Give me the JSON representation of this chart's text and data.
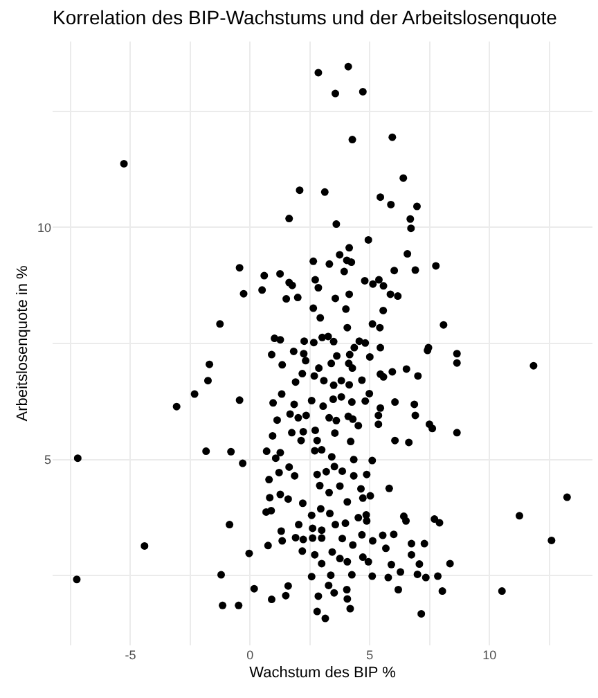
{
  "chart_data": {
    "type": "scatter",
    "title": "Korrelation des BIP-Wachstums und der Arbeitslosenquote",
    "xlabel": "Wachstum des BIP %",
    "ylabel": "Arbeitslosenquote in %",
    "xlim": [
      -8.25,
      14.3
    ],
    "ylim": [
      1.0,
      14.0
    ],
    "xticks": [
      {
        "value": -7.5,
        "label": null
      },
      -5,
      {
        "value": -2.5,
        "label": null
      },
      0,
      {
        "value": 2.5,
        "label": null
      },
      5,
      {
        "value": 7.5,
        "label": null
      },
      10,
      {
        "value": 12.5,
        "label": null
      }
    ],
    "yticks": [
      {
        "value": 2.5,
        "label": null
      },
      5,
      {
        "value": 7.5,
        "label": null
      },
      10,
      {
        "value": 12.5,
        "label": null
      }
    ],
    "grid": true,
    "marker": "circle",
    "color": "#000000",
    "x": [
      2.85,
      4.1,
      3.56,
      4.71,
      4.27,
      5.94,
      -5.27,
      6.4,
      2.07,
      3.12,
      5.44,
      5.88,
      6.97,
      1.63,
      3.6,
      6.69,
      6.72,
      4.94,
      4.14,
      3.74,
      6.57,
      -0.44,
      2.64,
      3.31,
      4.04,
      4.23,
      3.93,
      6.02,
      6.9,
      7.76,
      0.59,
      1.25,
      1.63,
      1.76,
      2.72,
      2.85,
      4.79,
      5.13,
      5.38,
      5.57,
      5.86,
      6.17,
      -0.27,
      0.5,
      1.51,
      1.99,
      3.56,
      4.14,
      2.64,
      2.93,
      4.0,
      5.56,
      -1.26,
      5.11,
      5.42,
      4.06,
      8.08,
      1.02,
      1.26,
      2.26,
      2.66,
      3.01,
      3.26,
      3.49,
      4.56,
      4.81,
      5.44,
      7.45,
      7.41,
      8.64,
      8.64,
      11.84,
      0.9,
      1.82,
      2.24,
      3.62,
      4.16,
      4.35,
      5.0,
      -1.7,
      -1.76,
      -2.32,
      -3.07,
      1.34,
      2.32,
      2.87,
      3.39,
      4.12,
      4.27,
      2.18,
      2.68,
      3.08,
      3.81,
      4.14,
      3.49,
      1.9,
      4.67,
      5.44,
      5.57,
      5.94,
      6.53,
      7.01,
      1.32,
      -0.44,
      0.96,
      1.84,
      2.57,
      3.05,
      3.47,
      3.81,
      4.25,
      4.81,
      4.98,
      6.05,
      6.86,
      5.44,
      1.67,
      2.01,
      2.34,
      3.3,
      3.6,
      4.1,
      4.29,
      5.36,
      6.9,
      1.13,
      4.52,
      5.36,
      7.49,
      7.61,
      1.74,
      2.22,
      2.72,
      3.54,
      8.64,
      0.94,
      2.13,
      2.8,
      4.2,
      6.05,
      6.63,
      -7.2,
      -1.84,
      -0.8,
      -0.31,
      0.69,
      1.07,
      1.26,
      2.7,
      2.99,
      3.41,
      4.33,
      5.1,
      1.21,
      1.63,
      1.86,
      2.8,
      3.18,
      3.52,
      3.85,
      4.33,
      4.87,
      0.79,
      2.91,
      3.75,
      4.63,
      5.02,
      5.81,
      0.82,
      1.26,
      1.59,
      3.3,
      4.06,
      4.71,
      13.24,
      0.67,
      0.88,
      2.2,
      2.57,
      2.95,
      3.33,
      3.98,
      4.52,
      4.85,
      6.42,
      6.51,
      11.25,
      -0.86,
      2.03,
      2.61,
      2.99,
      3.56,
      4.87,
      7.7,
      7.91,
      -4.41,
      -0.04,
      0.75,
      1.3,
      1.34,
      1.9,
      2.22,
      2.61,
      2.99,
      3.85,
      4.29,
      4.67,
      5.12,
      5.54,
      6.0,
      6.74,
      7.28,
      12.59,
      2.18,
      2.7,
      3.43,
      3.75,
      4.71,
      5.67,
      6.74,
      2.99,
      4.06,
      4.94,
      5.9,
      7.07,
      8.35,
      -7.24,
      -1.21,
      2.57,
      3.37,
      4.25,
      5.1,
      5.77,
      6.28,
      6.99,
      7.34,
      7.84,
      0.17,
      1.59,
      1.49,
      3.28,
      3.51,
      4.04,
      6.19,
      8.03,
      10.52,
      -1.15,
      -0.48,
      0.9,
      2.85,
      4.06,
      2.8,
      3.14,
      4.18,
      7.15
    ],
    "values": [
      13.33,
      13.46,
      12.88,
      12.92,
      11.89,
      11.94,
      11.37,
      11.06,
      10.8,
      10.76,
      10.65,
      10.49,
      10.45,
      10.19,
      10.07,
      10.18,
      9.98,
      9.73,
      9.56,
      9.41,
      9.43,
      9.13,
      9.27,
      9.21,
      9.29,
      9.25,
      9.05,
      9.07,
      9.08,
      9.17,
      8.96,
      9.0,
      8.81,
      8.75,
      8.87,
      8.7,
      8.85,
      8.78,
      8.87,
      8.74,
      8.56,
      8.52,
      8.57,
      8.65,
      8.46,
      8.49,
      8.47,
      8.56,
      8.26,
      8.05,
      8.24,
      8.21,
      7.92,
      7.92,
      7.84,
      7.84,
      7.9,
      7.61,
      7.58,
      7.55,
      7.52,
      7.63,
      7.65,
      7.54,
      7.55,
      7.51,
      7.41,
      7.41,
      7.35,
      7.28,
      7.08,
      7.02,
      7.26,
      7.33,
      7.28,
      7.23,
      7.26,
      7.41,
      7.21,
      7.05,
      6.7,
      6.41,
      6.14,
      7.04,
      7.13,
      6.97,
      7.07,
      7.07,
      6.97,
      6.85,
      6.8,
      6.7,
      6.7,
      6.61,
      6.6,
      6.67,
      6.71,
      6.84,
      6.78,
      6.89,
      6.95,
      6.8,
      6.41,
      6.28,
      6.22,
      6.19,
      6.27,
      6.15,
      6.3,
      6.35,
      6.24,
      6.26,
      6.42,
      6.24,
      6.19,
      6.11,
      5.98,
      5.9,
      5.95,
      5.9,
      5.84,
      5.93,
      5.87,
      5.95,
      5.95,
      5.85,
      5.73,
      5.76,
      5.76,
      5.67,
      5.58,
      5.6,
      5.63,
      5.57,
      5.58,
      5.51,
      5.41,
      5.41,
      5.39,
      5.41,
      5.37,
      5.03,
      5.18,
      5.17,
      4.92,
      5.18,
      5.03,
      5.15,
      5.19,
      5.21,
      5.06,
      5.0,
      4.98,
      4.72,
      4.84,
      4.65,
      4.68,
      4.74,
      4.85,
      4.75,
      4.65,
      4.68,
      4.57,
      4.44,
      4.43,
      4.37,
      4.22,
      4.38,
      4.18,
      4.25,
      4.15,
      4.29,
      4.09,
      4.17,
      4.19,
      3.87,
      3.9,
      4.06,
      3.8,
      3.94,
      3.84,
      3.63,
      3.75,
      3.81,
      3.78,
      3.68,
      3.79,
      3.6,
      3.6,
      3.52,
      3.48,
      3.6,
      3.68,
      3.72,
      3.64,
      3.14,
      2.98,
      3.15,
      3.46,
      3.25,
      3.32,
      3.28,
      3.31,
      3.31,
      3.3,
      3.16,
      3.38,
      3.25,
      3.37,
      3.39,
      3.19,
      3.19,
      3.26,
      3.03,
      2.95,
      3.01,
      2.87,
      2.9,
      3.09,
      2.95,
      2.76,
      2.8,
      2.8,
      2.74,
      2.75,
      2.76,
      2.42,
      2.52,
      2.48,
      2.51,
      2.52,
      2.49,
      2.46,
      2.58,
      2.53,
      2.46,
      2.49,
      2.22,
      2.28,
      2.07,
      2.29,
      2.13,
      2.2,
      2.2,
      2.17,
      2.17,
      1.86,
      1.86,
      1.99,
      2.06,
      2.0,
      1.73,
      1.58,
      1.79,
      1.68
    ]
  }
}
